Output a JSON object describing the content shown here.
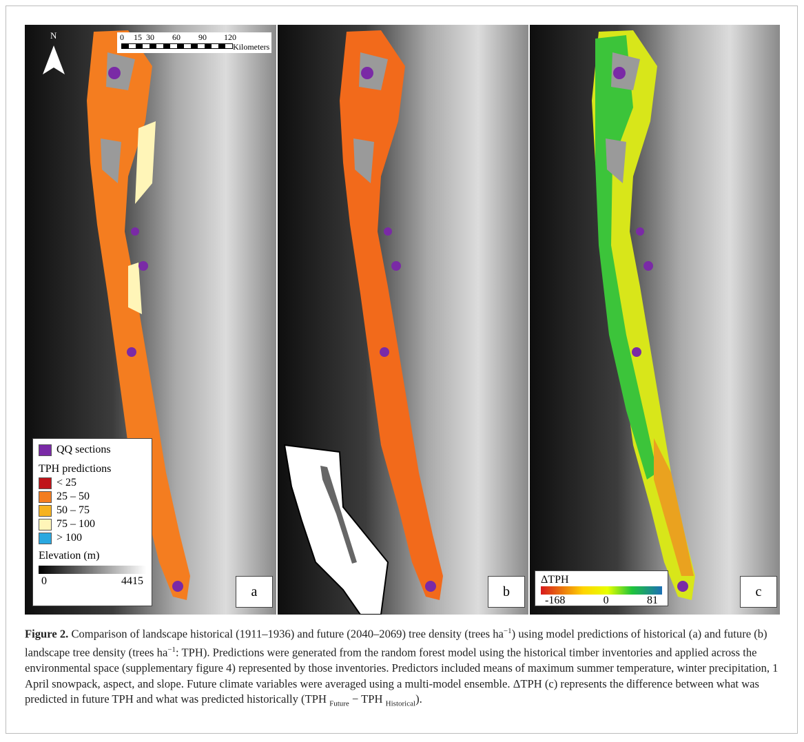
{
  "figure": {
    "north": "N",
    "scale_bar": {
      "ticks": [
        "0",
        "15",
        "30",
        "60",
        "90",
        "120"
      ],
      "unit": "Kilometers"
    },
    "legend_a": {
      "qq": "QQ sections",
      "tph_title": "TPH predictions",
      "classes": [
        "< 25",
        "25 – 50",
        "50 – 75",
        "75 – 100",
        "> 100"
      ],
      "elevation_title": "Elevation (m)",
      "elevation_min": "0",
      "elevation_max": "4415"
    },
    "legend_c": {
      "title": "ΔTPH",
      "min": "-168",
      "mid": "0",
      "max": "81"
    },
    "panels": [
      "a",
      "b",
      "c"
    ]
  },
  "caption": {
    "label": "Figure 2.",
    "segments": [
      " Comparison of landscape historical (1911–1936) and future (2040–2069) tree density (trees ha",
      "−1",
      ") using model predictions of historical (a) and future (b) landscape tree density (trees ha",
      "−1",
      ": TPH). Predictions were generated from the random forest model using the historical timber inventories and applied across the environmental space (supplementary figure 4) represented by those inventories. Predictors included means of maximum summer temperature, winter precipitation, 1 April snowpack, aspect, and slope. Future climate variables were averaged using a multi-model ensemble. ΔTPH (c) represents the difference between what was predicted in future TPH and what was predicted historically (TPH ",
      "Future",
      " − TPH ",
      "Historical",
      ")."
    ]
  }
}
